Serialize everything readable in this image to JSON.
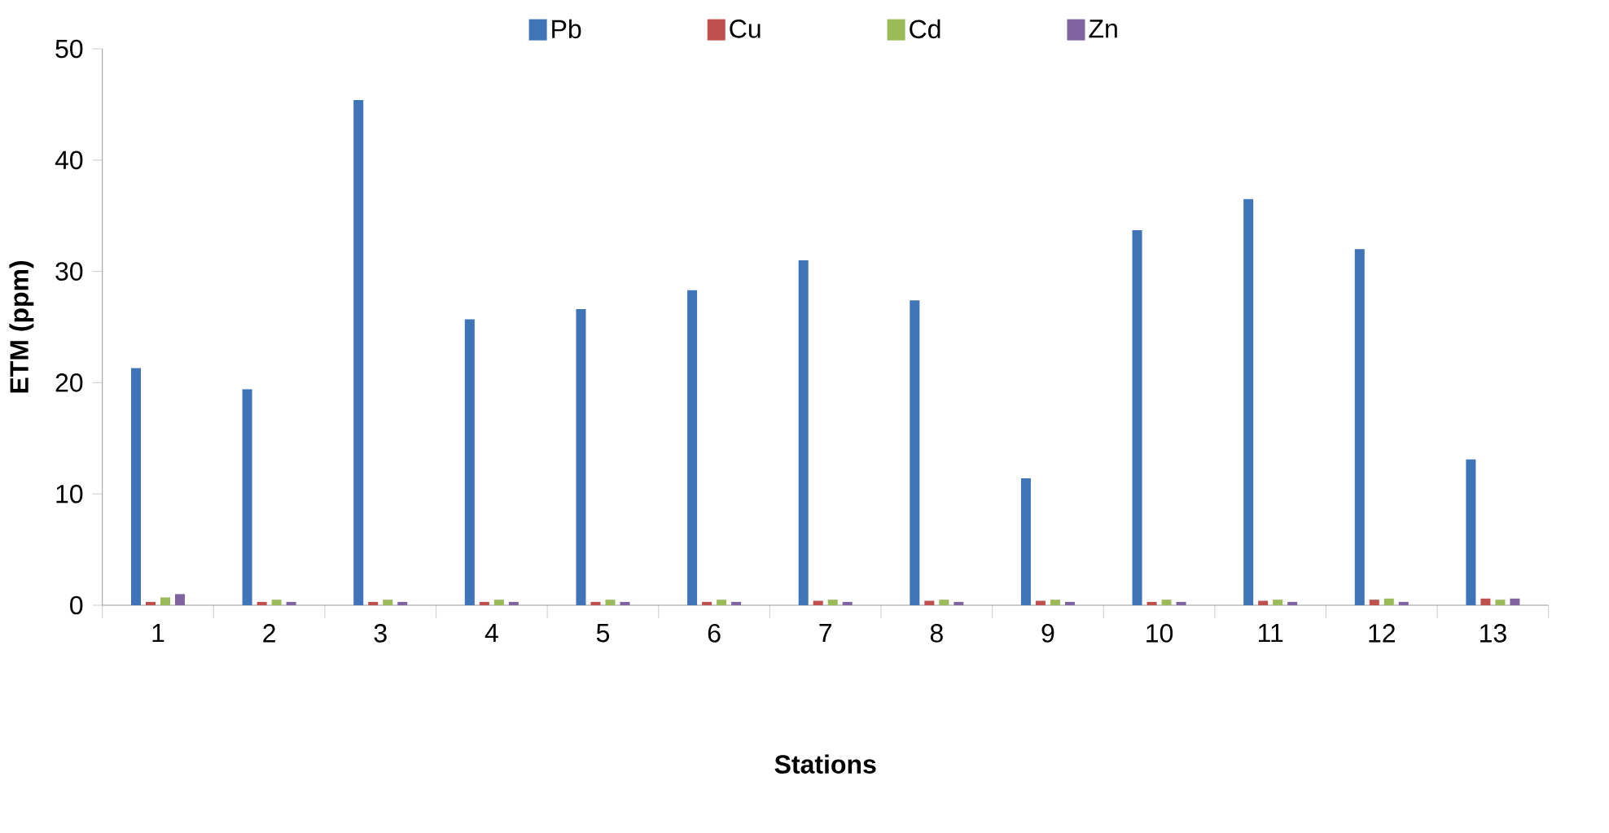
{
  "chart_data": {
    "type": "bar",
    "xlabel": "Stations",
    "ylabel": "ETM (ppm)",
    "categories": [
      "1",
      "2",
      "3",
      "4",
      "5",
      "6",
      "7",
      "8",
      "9",
      "10",
      "11",
      "12",
      "13"
    ],
    "series": [
      {
        "name": "Pb",
        "color": "#3f74b9",
        "values": [
          21.3,
          19.4,
          45.4,
          25.7,
          26.6,
          28.3,
          31.0,
          27.4,
          11.4,
          33.7,
          36.5,
          32.0,
          13.1
        ]
      },
      {
        "name": "Cu",
        "color": "#c0504d",
        "values": [
          0.3,
          0.3,
          0.3,
          0.3,
          0.3,
          0.3,
          0.4,
          0.4,
          0.4,
          0.3,
          0.4,
          0.5,
          0.6
        ]
      },
      {
        "name": "Cd",
        "color": "#9bbb59",
        "values": [
          0.7,
          0.5,
          0.5,
          0.5,
          0.5,
          0.5,
          0.5,
          0.5,
          0.5,
          0.5,
          0.5,
          0.6,
          0.5
        ]
      },
      {
        "name": "Zn",
        "color": "#8064a2",
        "values": [
          1.0,
          0.3,
          0.3,
          0.3,
          0.3,
          0.3,
          0.3,
          0.3,
          0.3,
          0.3,
          0.3,
          0.3,
          0.6
        ]
      }
    ],
    "ylim": [
      0,
      50
    ],
    "yticks": [
      0,
      10,
      20,
      30,
      40,
      50
    ],
    "grid": false,
    "legend": "top"
  }
}
